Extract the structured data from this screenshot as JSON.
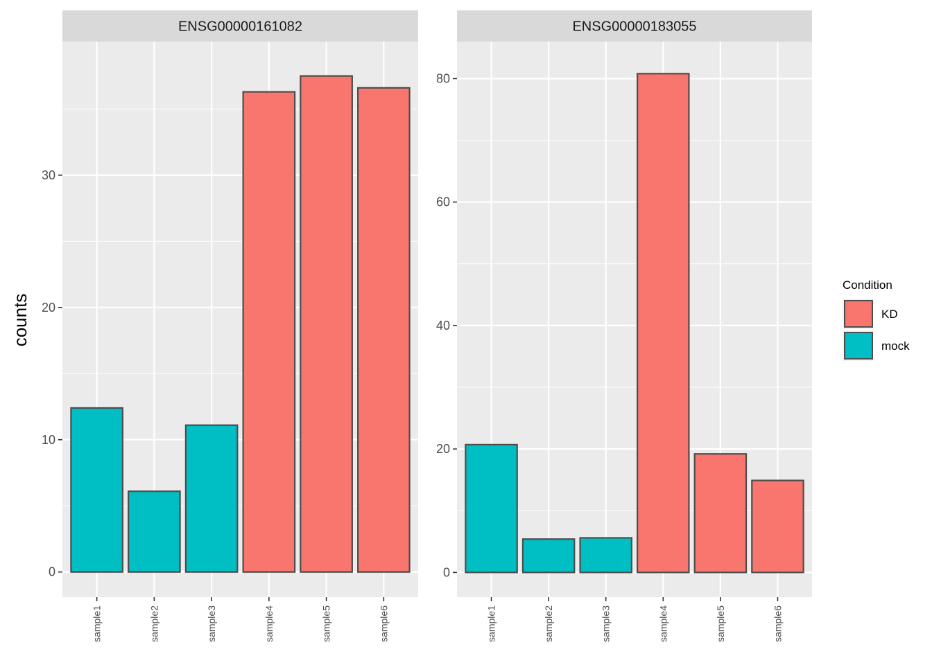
{
  "chart_data": {
    "type": "bar",
    "ylabel": "counts",
    "xlabel": "",
    "colors": {
      "KD": "#F8766D",
      "mock": "#00BFC4",
      "panel_bg": "#EBEBEB",
      "strip_bg": "#D9D9D9",
      "bar_outline": "#4D4D4D"
    },
    "legend": {
      "title": "Condition",
      "position": "right",
      "entries": [
        {
          "label": "KD",
          "color": "#F8766D"
        },
        {
          "label": "mock",
          "color": "#00BFC4"
        }
      ]
    },
    "grid": true,
    "facets": [
      {
        "title": "ENSG00000161082",
        "categories": [
          "sample1",
          "sample2",
          "sample3",
          "sample4",
          "sample5",
          "sample6"
        ],
        "values": [
          12.4,
          6.1,
          11.1,
          36.3,
          37.5,
          36.6
        ],
        "condition": [
          "mock",
          "mock",
          "mock",
          "KD",
          "KD",
          "KD"
        ],
        "ylim": [
          -1.9,
          40.1
        ],
        "yticks": [
          0,
          10,
          20,
          30
        ]
      },
      {
        "title": "ENSG00000183055",
        "categories": [
          "sample1",
          "sample2",
          "sample3",
          "sample4",
          "sample5",
          "sample6"
        ],
        "values": [
          20.7,
          5.4,
          5.6,
          80.8,
          19.2,
          14.9
        ],
        "condition": [
          "mock",
          "mock",
          "mock",
          "KD",
          "KD",
          "KD"
        ],
        "ylim": [
          -4.0,
          86.0
        ],
        "yticks": [
          0,
          20,
          40,
          60,
          80
        ]
      }
    ]
  }
}
